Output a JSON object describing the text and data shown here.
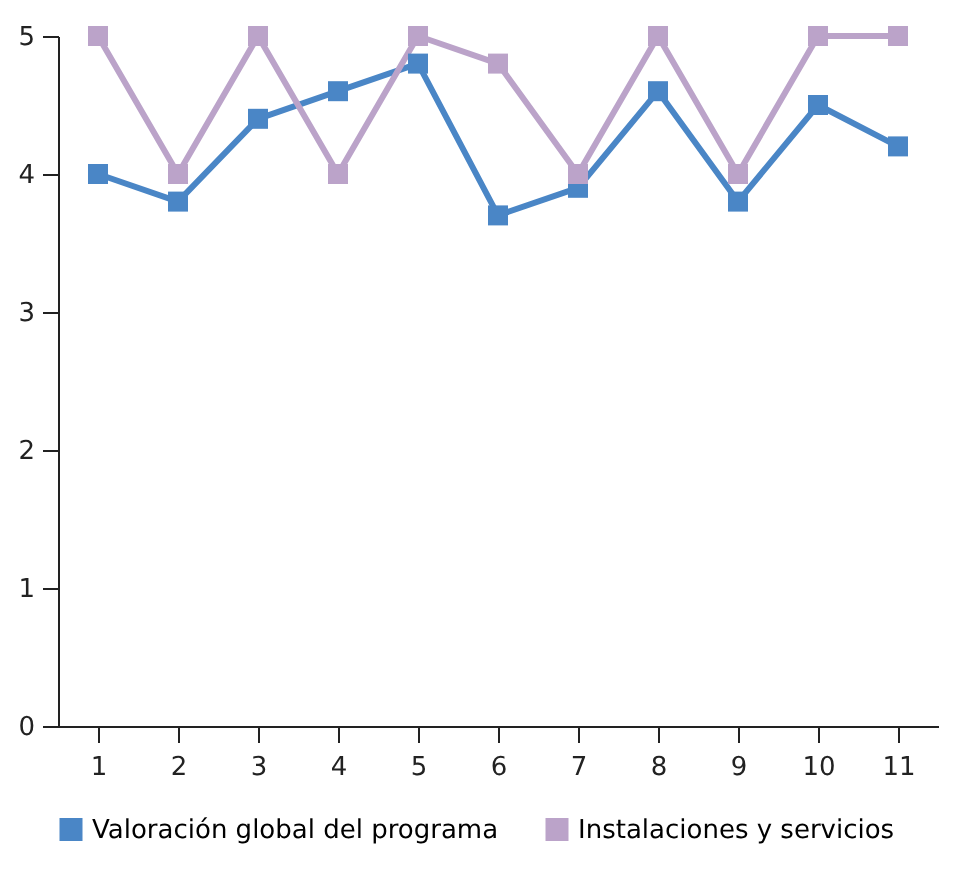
{
  "chart_data": {
    "type": "line",
    "categories": [
      "1",
      "2",
      "3",
      "4",
      "5",
      "6",
      "7",
      "8",
      "9",
      "10",
      "11"
    ],
    "series": [
      {
        "name": "Valoración global del programa",
        "color": "#4a86c6",
        "values": [
          4.0,
          3.8,
          4.4,
          4.6,
          4.8,
          3.7,
          3.9,
          4.6,
          3.8,
          4.5,
          4.2
        ]
      },
      {
        "name": "Instalaciones y servicios",
        "color": "#bba3c9",
        "values": [
          5,
          4,
          5,
          4,
          5,
          4.8,
          4,
          5,
          4,
          5,
          5
        ]
      }
    ],
    "ylim": [
      0,
      5
    ],
    "yticks": [
      0,
      1,
      2,
      3,
      4,
      5
    ],
    "grid": false,
    "legend": "bottom",
    "marker": "square",
    "line_style": "solid"
  }
}
